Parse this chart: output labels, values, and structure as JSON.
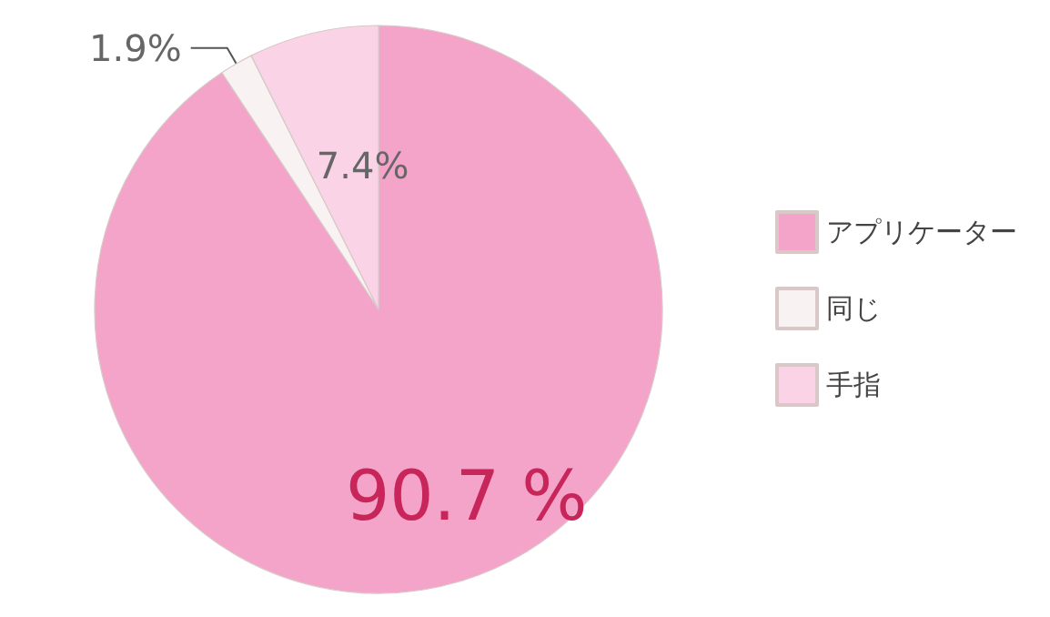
{
  "chart_data": {
    "type": "pie",
    "categories": [
      "アプリケーター",
      "同じ",
      "手指"
    ],
    "values": [
      90.7,
      1.9,
      7.4
    ],
    "colors": [
      "#f4a3c9",
      "#f8f3f2",
      "#fad4e6"
    ],
    "value_labels": [
      "90.7 %",
      "1.9%",
      "7.4%"
    ],
    "legend": "right"
  }
}
